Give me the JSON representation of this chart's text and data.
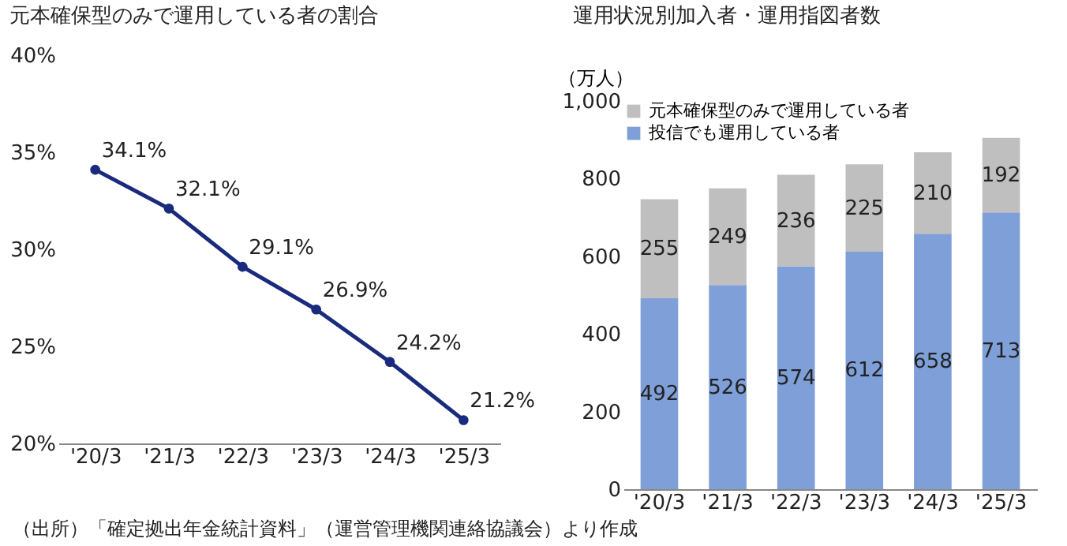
{
  "chart_data": [
    {
      "type": "line",
      "title": "元本確保型のみで運用している者の割合",
      "categories": [
        "'20/3",
        "'21/3",
        "'22/3",
        "'23/3",
        "'24/3",
        "'25/3"
      ],
      "series": [
        {
          "color": "#1a2a7c",
          "values": [
            34.1,
            32.1,
            29.1,
            26.9,
            24.2,
            21.2
          ],
          "value_labels": [
            "34.1%",
            "32.1%",
            "29.1%",
            "26.9%",
            "24.2%",
            "21.2%"
          ]
        }
      ],
      "ylim": [
        20,
        40
      ],
      "yticks": [
        {
          "value": 20,
          "label": "20%"
        },
        {
          "value": 25,
          "label": "25%"
        },
        {
          "value": 30,
          "label": "30%"
        },
        {
          "value": 35,
          "label": "35%"
        },
        {
          "value": 40,
          "label": "40%"
        }
      ],
      "marker": "circle",
      "grid": false,
      "annotations": [
        "（出所）「確定拠出年金統計資料」（運営管理機関連絡協議会）より作成"
      ]
    },
    {
      "type": "bar",
      "stacked": true,
      "title": "運用状況別加入者・運用指図者数",
      "ylabel": "（万人）",
      "categories": [
        "'20/3",
        "'21/3",
        "'22/3",
        "'23/3",
        "'24/3",
        "'25/3"
      ],
      "series": [
        {
          "name": "投信でも運用している者",
          "color": "#7f9fd9",
          "values": [
            492,
            526,
            574,
            612,
            658,
            713
          ]
        },
        {
          "name": "元本確保型のみで運用している者",
          "color": "#bfbfbf",
          "values": [
            255,
            249,
            236,
            225,
            210,
            192
          ]
        }
      ],
      "ylim": [
        0,
        1000
      ],
      "yticks": [
        0,
        200,
        400,
        600,
        800,
        {
          "value": 1000,
          "label": "1,000"
        }
      ],
      "data_labels": true,
      "legend": "top left",
      "grid": false
    }
  ]
}
